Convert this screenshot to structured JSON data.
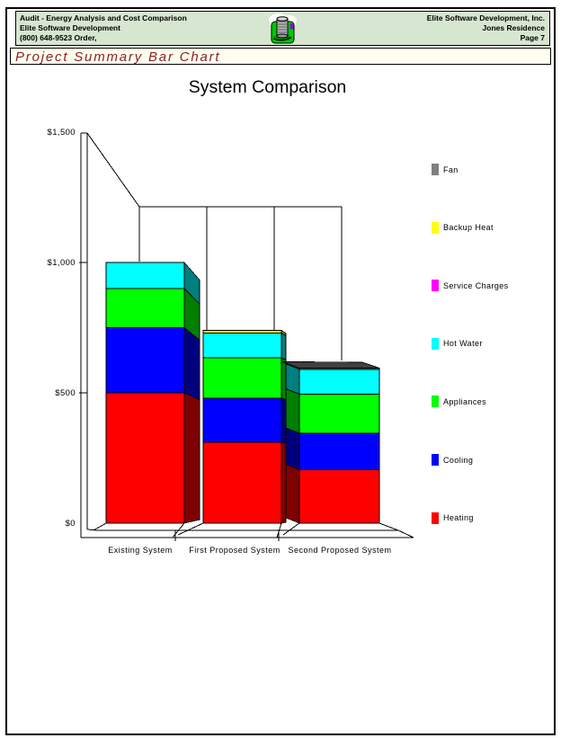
{
  "page": {
    "header": {
      "left_lines": {
        "app_title": "Audit - Energy Analysis and Cost Comparison",
        "company": "Elite Software Development",
        "phone": "(800) 648-9523 Order,"
      },
      "right_lines": {
        "company": "Elite Software Development, Inc.",
        "project": "Jones Residence",
        "page_number": "Page 7"
      },
      "logo_icon": "hvac-coil-logo",
      "bg_color": "#d6e6d0"
    },
    "section_title": {
      "text": "Project Summary Bar Chart",
      "color": "#8b2222",
      "bg_color": "#fffff0"
    }
  },
  "chart_data": {
    "type": "bar",
    "variant": "3d-stacked-perspective",
    "title": "System Comparison",
    "categories": [
      "Existing System",
      "First Proposed System",
      "Second Proposed System"
    ],
    "series": [
      {
        "name": "Heating",
        "color": "#ff0000",
        "values": [
          500,
          310,
          205
        ]
      },
      {
        "name": "Cooling",
        "color": "#0000ff",
        "values": [
          250,
          170,
          140
        ]
      },
      {
        "name": "Appliances",
        "color": "#00ff00",
        "values": [
          150,
          155,
          150
        ]
      },
      {
        "name": "Hot Water",
        "color": "#00ffff",
        "values": [
          100,
          95,
          95
        ]
      },
      {
        "name": "Service Charges",
        "color": "#ff00ff",
        "values": [
          0,
          0,
          0
        ]
      },
      {
        "name": "Backup Heat",
        "color": "#ffff00",
        "values": [
          0,
          10,
          0
        ]
      },
      {
        "name": "Fan",
        "color": "#808080",
        "values": [
          0,
          0,
          5
        ]
      }
    ],
    "totals_usd": [
      1000,
      740,
      595
    ],
    "xlabel": "",
    "ylabel": "",
    "ylim": [
      0,
      1500
    ],
    "yticks": [
      0,
      500,
      1000,
      1500
    ],
    "ytick_labels": [
      "$0",
      "$500",
      "$1,000",
      "$1,500"
    ],
    "grid": false,
    "legend_position": "right",
    "legend_order_top_to_bottom": [
      "Fan",
      "Backup Heat",
      "Service Charges",
      "Hot Water",
      "Appliances",
      "Cooling",
      "Heating"
    ]
  }
}
